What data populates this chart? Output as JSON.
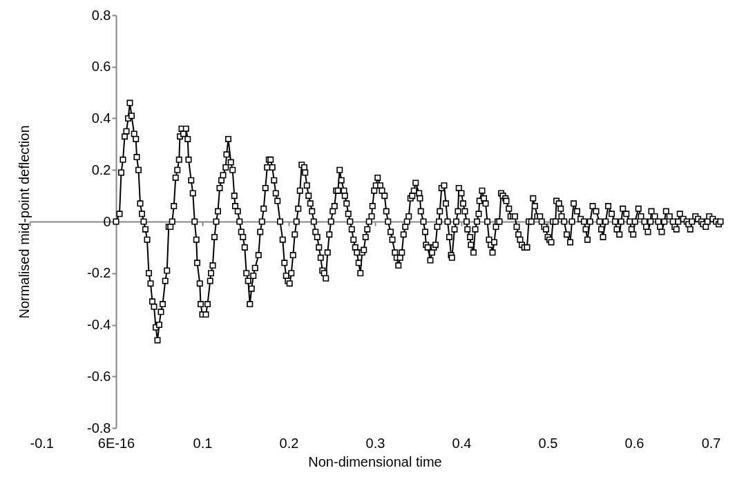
{
  "chart_data": {
    "type": "line",
    "xlabel": "Non-dimensional time",
    "ylabel": "Normalised mid-point deflection",
    "color": "#000000",
    "marker": "square",
    "line_style": "solid",
    "xlim": [
      -0.1,
      0.7
    ],
    "xticks": [
      -0.1,
      {
        "value": 0,
        "label": "6E-16"
      },
      0.1,
      0.2,
      0.3,
      0.4,
      0.5,
      0.6,
      0.7
    ],
    "ylim": [
      -0.8,
      0.8
    ],
    "yticks": [
      -0.8,
      -0.6,
      -0.4,
      -0.2,
      0,
      0.2,
      0.4,
      0.6,
      0.8
    ],
    "x": [
      0,
      0.004,
      0.006,
      0.008,
      0.01,
      0.012,
      0.014,
      0.016,
      0.018,
      0.021,
      0.023,
      0.024,
      0.026,
      0.028,
      0.03,
      0.032,
      0.034,
      0.036,
      0.038,
      0.04,
      0.042,
      0.044,
      0.046,
      0.048,
      0.05,
      0.052,
      0.054,
      0.057,
      0.059,
      0.061,
      0.063,
      0.065,
      0.067,
      0.069,
      0.071,
      0.073,
      0.074,
      0.076,
      0.078,
      0.081,
      0.083,
      0.084,
      0.087,
      0.089,
      0.091,
      0.093,
      0.094,
      0.097,
      0.098,
      0.1,
      0.104,
      0.106,
      0.109,
      0.11,
      0.112,
      0.114,
      0.116,
      0.118,
      0.12,
      0.122,
      0.124,
      0.127,
      0.128,
      0.13,
      0.133,
      0.135,
      0.137,
      0.138,
      0.141,
      0.143,
      0.145,
      0.147,
      0.149,
      0.151,
      0.153,
      0.155,
      0.157,
      0.159,
      0.161,
      0.165,
      0.167,
      0.169,
      0.171,
      0.173,
      0.175,
      0.177,
      0.179,
      0.181,
      0.183,
      0.185,
      0.187,
      0.19,
      0.193,
      0.195,
      0.197,
      0.199,
      0.201,
      0.203,
      0.205,
      0.207,
      0.209,
      0.211,
      0.213,
      0.215,
      0.218,
      0.219,
      0.221,
      0.223,
      0.225,
      0.227,
      0.229,
      0.231,
      0.233,
      0.235,
      0.237,
      0.239,
      0.241,
      0.243,
      0.245,
      0.247,
      0.249,
      0.251,
      0.253,
      0.255,
      0.257,
      0.259,
      0.261,
      0.264,
      0.265,
      0.267,
      0.269,
      0.271,
      0.273,
      0.275,
      0.277,
      0.279,
      0.281,
      0.283,
      0.285,
      0.287,
      0.289,
      0.291,
      0.293,
      0.296,
      0.297,
      0.299,
      0.301,
      0.303,
      0.306,
      0.308,
      0.311,
      0.313,
      0.315,
      0.318,
      0.32,
      0.323,
      0.325,
      0.327,
      0.329,
      0.331,
      0.333,
      0.335,
      0.337,
      0.339,
      0.341,
      0.343,
      0.345,
      0.347,
      0.351,
      0.352,
      0.353,
      0.356,
      0.358,
      0.359,
      0.361,
      0.364,
      0.366,
      0.368,
      0.37,
      0.372,
      0.374,
      0.375,
      0.377,
      0.38,
      0.382,
      0.384,
      0.386,
      0.388,
      0.389,
      0.392,
      0.394,
      0.396,
      0.397,
      0.4,
      0.402,
      0.404,
      0.406,
      0.407,
      0.41,
      0.411,
      0.414,
      0.416,
      0.418,
      0.42,
      0.421,
      0.424,
      0.426,
      0.428,
      0.43,
      0.432,
      0.434,
      0.436,
      0.438,
      0.44,
      0.442,
      0.444,
      0.446,
      0.448,
      0.451,
      0.452,
      0.455,
      0.457,
      0.46,
      0.462,
      0.464,
      0.466,
      0.468,
      0.47,
      0.473,
      0.476,
      0.478,
      0.481,
      0.483,
      0.485,
      0.488,
      0.491,
      0.493,
      0.496,
      0.498,
      0.5,
      0.502,
      0.504,
      0.506,
      0.509,
      0.51,
      0.513,
      0.515,
      0.516,
      0.519,
      0.522,
      0.526,
      0.528,
      0.53,
      0.534,
      0.538,
      0.542,
      0.544,
      0.546,
      0.549,
      0.552,
      0.556,
      0.56,
      0.562,
      0.564,
      0.567,
      0.57,
      0.574,
      0.578,
      0.58,
      0.583,
      0.585,
      0.587,
      0.591,
      0.595,
      0.597,
      0.599,
      0.601,
      0.605,
      0.608,
      0.612,
      0.614,
      0.616,
      0.619,
      0.62,
      0.624,
      0.628,
      0.63,
      0.632,
      0.635,
      0.637,
      0.641,
      0.645,
      0.647,
      0.649,
      0.651,
      0.653,
      0.657,
      0.661,
      0.663,
      0.665,
      0.667,
      0.671,
      0.674,
      0.678,
      0.68,
      0.683,
      0.685,
      0.687,
      0.691,
      0.695,
      0.698,
      0.7
    ],
    "values": [
      0,
      0.03,
      0.19,
      0.24,
      0.33,
      0.35,
      0.4,
      0.46,
      0.41,
      0.34,
      0.32,
      0.25,
      0.2,
      0.07,
      0.03,
      0,
      -0.03,
      -0.07,
      -0.2,
      -0.24,
      -0.31,
      -0.33,
      -0.41,
      -0.46,
      -0.4,
      -0.35,
      -0.32,
      -0.23,
      -0.19,
      -0.02,
      -0.02,
      0,
      0.06,
      0.17,
      0.2,
      0.24,
      0.33,
      0.36,
      0.34,
      0.36,
      0.32,
      0.24,
      0.16,
      0.11,
      0,
      -0.07,
      -0.16,
      -0.24,
      -0.32,
      -0.36,
      -0.36,
      -0.32,
      -0.23,
      -0.2,
      -0.17,
      -0.06,
      0,
      0.04,
      0.13,
      0.16,
      0.18,
      0.21,
      0.26,
      0.32,
      0.23,
      0.2,
      0.1,
      0.06,
      0.04,
      0,
      -0.04,
      -0.06,
      -0.1,
      -0.2,
      -0.23,
      -0.32,
      -0.26,
      -0.21,
      -0.18,
      -0.13,
      -0.04,
      0,
      0.05,
      0.13,
      0.21,
      0.24,
      0.24,
      0.21,
      0.16,
      0.11,
      0.08,
      0,
      -0.07,
      -0.16,
      -0.21,
      -0.23,
      -0.24,
      -0.2,
      -0.13,
      -0.05,
      0,
      0.05,
      0.12,
      0.22,
      0.21,
      0.19,
      0.14,
      0.1,
      0.07,
      0.04,
      0,
      -0.04,
      -0.06,
      -0.1,
      -0.14,
      -0.19,
      -0.2,
      -0.22,
      -0.12,
      -0.05,
      0,
      0.04,
      0.06,
      0.12,
      0.12,
      0.2,
      0.16,
      0.12,
      0.1,
      0.07,
      0.03,
      0,
      -0.03,
      -0.07,
      -0.1,
      -0.12,
      -0.16,
      -0.2,
      -0.12,
      -0.11,
      -0.06,
      -0.03,
      0,
      0.02,
      0.06,
      0.12,
      0.14,
      0.17,
      0.14,
      0.12,
      0.1,
      0.04,
      0,
      -0.04,
      -0.07,
      -0.12,
      -0.14,
      -0.17,
      -0.14,
      -0.12,
      -0.05,
      -0.02,
      0,
      0.02,
      0.09,
      0.1,
      0.12,
      0.15,
      0.11,
      0.09,
      0.04,
      0,
      -0.04,
      -0.09,
      -0.1,
      -0.15,
      -0.12,
      -0.1,
      -0.09,
      -0.02,
      0,
      0.04,
      0.13,
      0.14,
      0.07,
      0,
      -0.06,
      -0.13,
      -0.14,
      -0.03,
      0,
      0.04,
      0.13,
      0.11,
      0.07,
      0.04,
      0,
      -0.03,
      -0.06,
      -0.09,
      -0.12,
      -0.03,
      0,
      0.03,
      0.08,
      0.12,
      0.09,
      0.07,
      0,
      -0.07,
      -0.09,
      -0.12,
      -0.08,
      -0.02,
      0,
      0,
      0.11,
      0.1,
      0.09,
      0.08,
      0.05,
      0.02,
      0.02,
      0.02,
      -0.02,
      -0.05,
      -0.07,
      -0.09,
      -0.1,
      -0.1,
      0,
      0,
      0.09,
      0.06,
      0.02,
      0.02,
      0,
      -0.02,
      -0.03,
      -0.06,
      -0.07,
      -0.08,
      0,
      0,
      0.08,
      0.07,
      0.05,
      0.02,
      0,
      -0.05,
      -0.08,
      0,
      0.07,
      0.04,
      0.01,
      0,
      -0.03,
      -0.07,
      0,
      0.06,
      0.04,
      0,
      -0.03,
      -0.06,
      0,
      0.06,
      0.03,
      0,
      -0.03,
      -0.05,
      0,
      0.05,
      0.03,
      0,
      -0.03,
      -0.05,
      0,
      0.05,
      0.02,
      0,
      -0.02,
      -0.04,
      0,
      0.04,
      0.02,
      0,
      -0.02,
      -0.04,
      0,
      0.04,
      0.02,
      0,
      -0.02,
      -0.03,
      0,
      0.03,
      0.01,
      0,
      -0.01,
      -0.03,
      0,
      0.02,
      0.01,
      0,
      -0.01,
      -0.02,
      0,
      0.02,
      0.01,
      0,
      -0.01,
      0
    ]
  }
}
